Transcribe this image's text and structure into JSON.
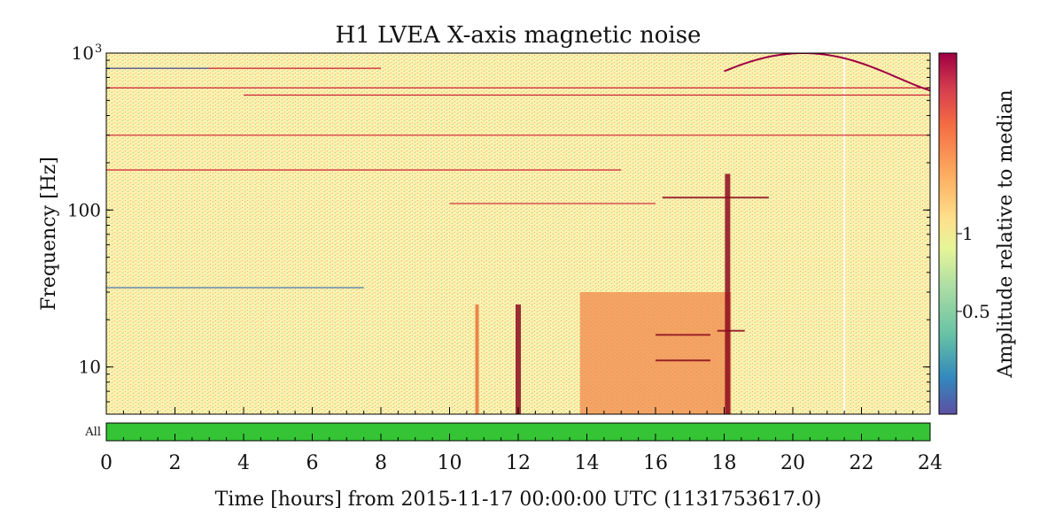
{
  "chart_data": {
    "type": "heatmap",
    "title": "H1 LVEA X-axis magnetic noise",
    "xlabel": "Time [hours] from 2015-11-17 00:00:00 UTC (1131753617.0)",
    "ylabel": "Frequency [Hz]",
    "xlim": [
      0,
      24
    ],
    "ylim": [
      5,
      1000
    ],
    "y_scale": "log",
    "x_ticks": [
      0,
      2,
      4,
      6,
      8,
      10,
      12,
      14,
      16,
      18,
      20,
      22,
      24
    ],
    "x_tick_labels": [
      "0",
      "2",
      "4",
      "6",
      "8",
      "10",
      "12",
      "14",
      "16",
      "18",
      "20",
      "22",
      "24"
    ],
    "y_ticks": [
      {
        "value": 10,
        "label": "10"
      },
      {
        "value": 100,
        "label": "100"
      },
      {
        "value": 1000,
        "label": "10",
        "sup": "3"
      }
    ],
    "colorbar": {
      "label": "Amplitude relative to median",
      "scale": "log",
      "colormap": "spectral_r",
      "ticks": [
        {
          "value": 0.5,
          "label": "0.5"
        },
        {
          "value": 1,
          "label": "1"
        }
      ],
      "range": [
        0.2,
        5
      ]
    },
    "features": {
      "horizontal_lines_hz": [
        {
          "f": 800,
          "t0": 0,
          "t1": 8,
          "color": "red"
        },
        {
          "f": 800,
          "t0": 0,
          "t1": 3,
          "color": "blue"
        },
        {
          "f": 600,
          "t0": 0,
          "t1": 24,
          "color": "red"
        },
        {
          "f": 540,
          "t0": 4,
          "t1": 24,
          "color": "red"
        },
        {
          "f": 300,
          "t0": 0,
          "t1": 24,
          "color": "red"
        },
        {
          "f": 180,
          "t0": 0,
          "t1": 15,
          "color": "red"
        },
        {
          "f": 110,
          "t0": 10,
          "t1": 16,
          "color": "red"
        },
        {
          "f": 120,
          "t0": 16.2,
          "t1": 19.3,
          "color": "darkred"
        },
        {
          "f": 32,
          "t0": 0,
          "t1": 7.5,
          "color": "blue"
        },
        {
          "f": 17,
          "t0": 17.8,
          "t1": 18.6,
          "color": "darkred"
        },
        {
          "f": 16,
          "t0": 16,
          "t1": 17.6,
          "color": "darkred"
        },
        {
          "f": 11,
          "t0": 16,
          "t1": 17.6,
          "color": "darkred"
        }
      ],
      "vertical_events_hours": [
        {
          "t": 10.8,
          "fmax": 25,
          "color": "orange"
        },
        {
          "t": 12.0,
          "fmax": 25,
          "color": "darkred"
        },
        {
          "t": 18.1,
          "fmax": 170,
          "color": "darkred"
        },
        {
          "t": 21.5,
          "fmax": 1000,
          "color": "white"
        }
      ],
      "elevated_regions": [
        {
          "t0": 13.8,
          "t1": 18.2,
          "f_max": 30,
          "level": 2
        }
      ],
      "drifting_line_segment": {
        "t0": 18,
        "t1": 24,
        "f_range": [
          480,
          1000
        ]
      }
    }
  },
  "segments": {
    "label": "All",
    "color": "#35c435",
    "active": [
      [
        0,
        24
      ]
    ]
  }
}
